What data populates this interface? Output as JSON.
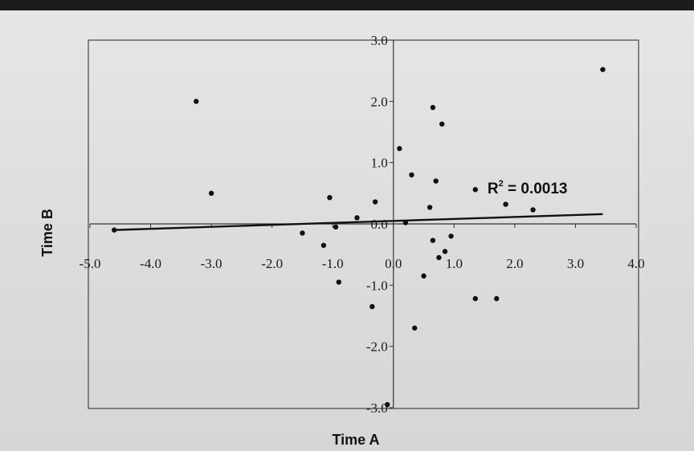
{
  "chart_data": {
    "type": "scatter",
    "xlabel": "Time A",
    "ylabel": "Time B",
    "xlim": [
      -5.0,
      4.0
    ],
    "ylim": [
      -3.0,
      3.0
    ],
    "x_ticks": [
      -5.0,
      -4.0,
      -3.0,
      -2.0,
      -1.0,
      0.0,
      1.0,
      2.0,
      3.0,
      4.0
    ],
    "y_ticks": [
      -3.0,
      -2.0,
      -1.0,
      0.0,
      1.0,
      2.0,
      3.0
    ],
    "x_tick_labels": [
      "-5.0",
      "-4.0",
      "-3.0",
      "-2.0",
      "-1.0",
      "0.0",
      "1.0",
      "2.0",
      "3.0",
      "4.0"
    ],
    "y_tick_labels": [
      "-3.0",
      "-2.0",
      "-1.0",
      "0.0",
      "1.0",
      "2.0",
      "3.0"
    ],
    "grid": false,
    "legend": "none",
    "points": [
      {
        "x": -4.6,
        "y": -0.1
      },
      {
        "x": -3.25,
        "y": 2.0
      },
      {
        "x": -3.0,
        "y": 0.5
      },
      {
        "x": -1.5,
        "y": -0.15
      },
      {
        "x": -1.15,
        "y": -0.35
      },
      {
        "x": -1.05,
        "y": 0.43
      },
      {
        "x": -0.95,
        "y": -0.05
      },
      {
        "x": -0.9,
        "y": -0.95
      },
      {
        "x": -0.6,
        "y": 0.1
      },
      {
        "x": -0.35,
        "y": -1.35
      },
      {
        "x": -0.3,
        "y": 0.36
      },
      {
        "x": -0.1,
        "y": -2.95
      },
      {
        "x": 0.1,
        "y": 1.23
      },
      {
        "x": 0.2,
        "y": 0.02
      },
      {
        "x": 0.3,
        "y": 0.8
      },
      {
        "x": 0.35,
        "y": -1.7
      },
      {
        "x": 0.5,
        "y": -0.85
      },
      {
        "x": 0.6,
        "y": 0.27
      },
      {
        "x": 0.65,
        "y": 1.9
      },
      {
        "x": 0.65,
        "y": -0.27
      },
      {
        "x": 0.7,
        "y": 0.7
      },
      {
        "x": 0.75,
        "y": -0.55
      },
      {
        "x": 0.8,
        "y": 1.63
      },
      {
        "x": 0.85,
        "y": -0.45
      },
      {
        "x": 0.95,
        "y": -0.2
      },
      {
        "x": 1.35,
        "y": 0.56
      },
      {
        "x": 1.35,
        "y": -1.22
      },
      {
        "x": 1.7,
        "y": -1.22
      },
      {
        "x": 1.85,
        "y": 0.32
      },
      {
        "x": 2.3,
        "y": 0.23
      },
      {
        "x": 3.45,
        "y": 2.52
      }
    ],
    "trendline": {
      "x": [
        -4.6,
        3.45
      ],
      "y": [
        -0.1,
        0.16
      ]
    },
    "r2_label": "R",
    "r2_superscript": "2",
    "r2_value": " = 0.0013",
    "colors": {
      "points": "#111111",
      "line": "#111111",
      "frame": "#444444",
      "axes": "#333333"
    }
  }
}
